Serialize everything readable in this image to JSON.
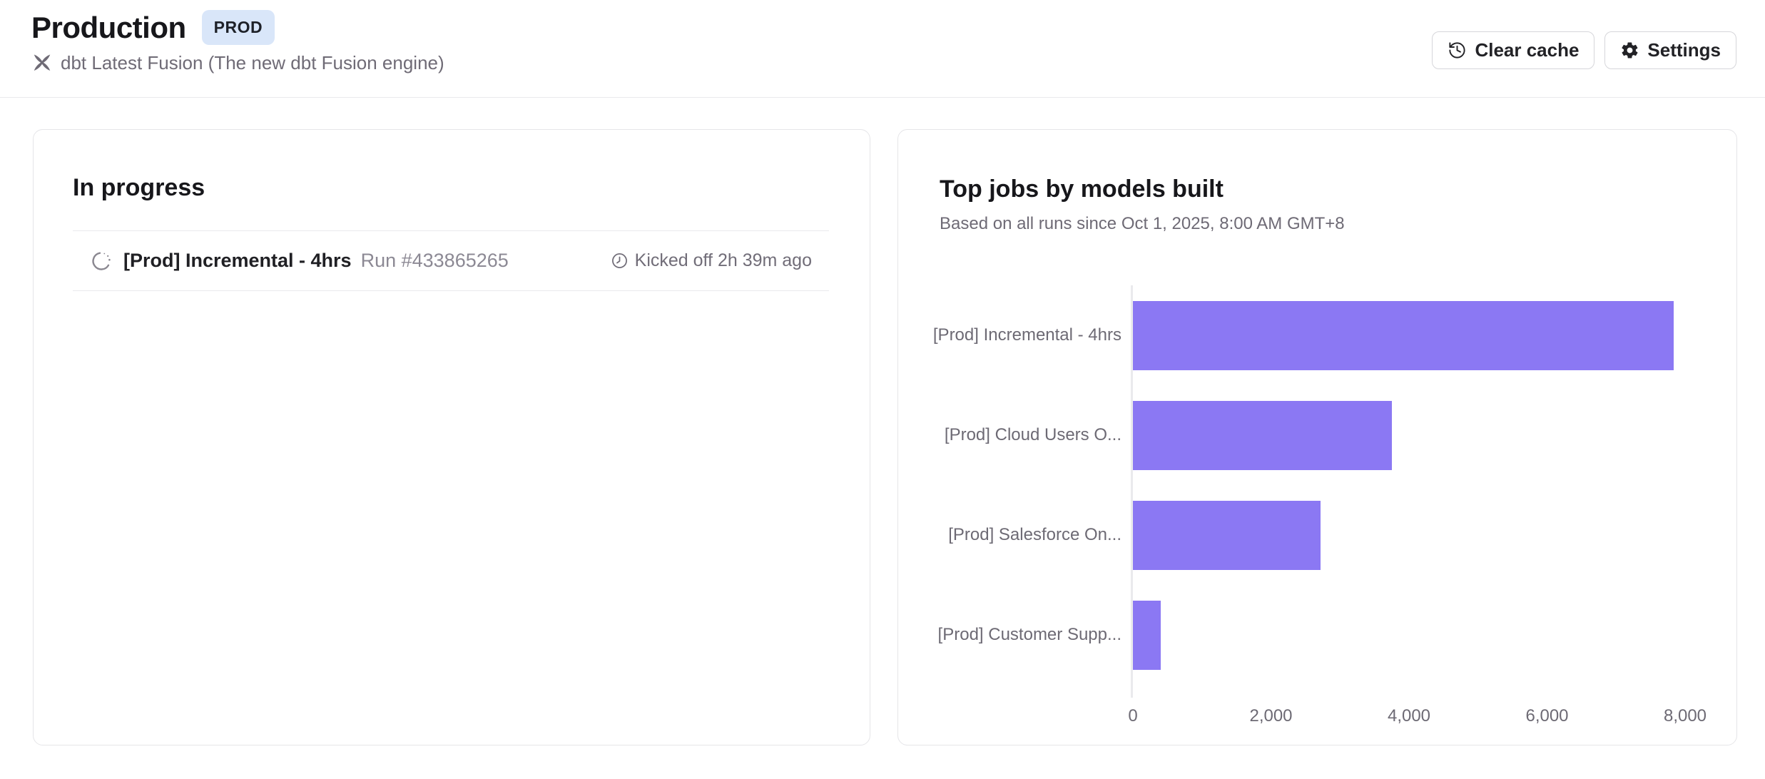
{
  "header": {
    "title": "Production",
    "environment_badge": "PROD",
    "subtitle": "dbt Latest Fusion (The new dbt Fusion engine)",
    "clear_cache_button": "Clear cache",
    "settings_button": "Settings"
  },
  "in_progress_card": {
    "heading": "In progress",
    "run": {
      "job_name": "[Prod] Incremental - 4hrs",
      "run_number": "Run #433865265",
      "kicked_off": "Kicked off 2h 39m ago"
    }
  },
  "top_jobs_card": {
    "title": "Top jobs by models built",
    "subtitle": "Based on all runs since Oct 1, 2025, 8:00 AM GMT+8"
  },
  "chart_data": {
    "type": "bar",
    "orientation": "horizontal",
    "title": "Top jobs by models built",
    "categories": [
      "[Prod] Incremental - 4hrs",
      "[Prod] Cloud Users O...",
      "[Prod] Salesforce On...",
      "[Prod] Customer Supp..."
    ],
    "values": [
      7830,
      3750,
      2720,
      400
    ],
    "x_ticks": [
      {
        "label": "0",
        "value": 0
      },
      {
        "label": "2,000",
        "value": 2000
      },
      {
        "label": "4,000",
        "value": 4000
      },
      {
        "label": "6,000",
        "value": 6000
      },
      {
        "label": "8,000",
        "value": 8000
      }
    ],
    "xlim": [
      0,
      8200
    ],
    "bar_color": "#8b78f3",
    "grid": false,
    "legend": false
  },
  "colors": {
    "accent_purple": "#8b78f3",
    "badge_bg": "#d9e6f9",
    "card_border": "#e5e5e8",
    "text_primary": "#17171b",
    "text_secondary": "#6e6a75"
  }
}
